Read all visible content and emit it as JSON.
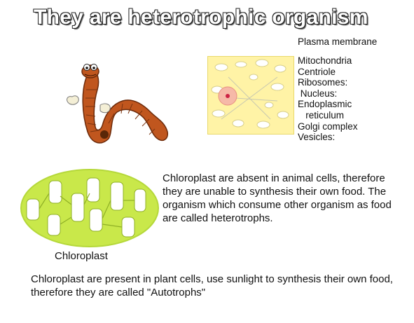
{
  "title": "They are heterotrophic organism",
  "cell_diagram": {
    "plasma_membrane_label": "Plasma membrane",
    "organelles": [
      "Mitochondria",
      "Centriole",
      "Ribosomes:",
      " Nucleus:",
      "Endoplasmic",
      "   reticulum",
      "Golgi complex",
      "Vesicles:"
    ]
  },
  "chloroplast": {
    "label": "Chloroplast"
  },
  "animal_text": "Chloroplast are absent in animal cells, therefore they are unable to synthesis their own food. The organism which consume other organism as food are called heterotrophs.",
  "plant_text": "Chloroplast are present in plant cells, use sunlight to synthesis their own food, therefore they are called \"Autotrophs\"",
  "colors": {
    "worm": "#c0561e",
    "cell_fill": "#fff3a6",
    "chloroplast_fill": "#c9e84a"
  }
}
